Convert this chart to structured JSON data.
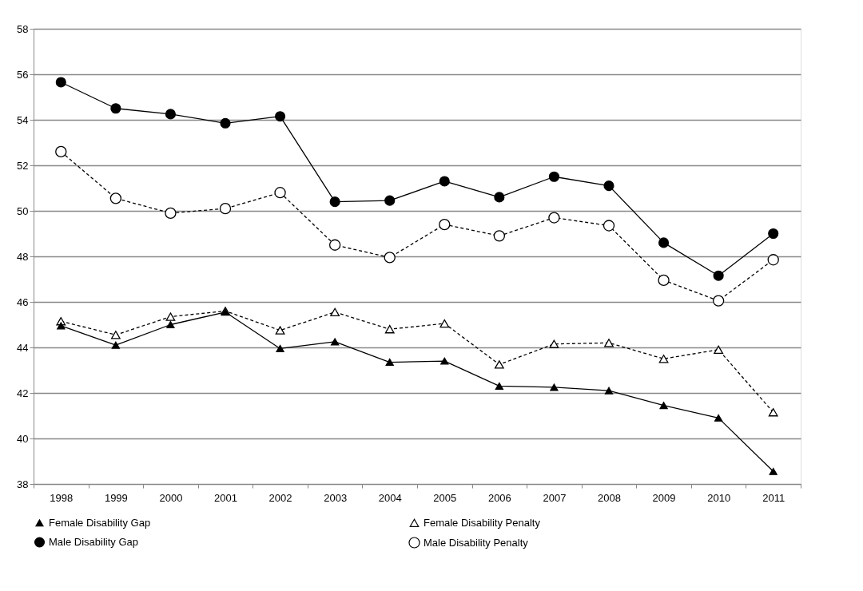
{
  "chart_data": {
    "type": "line",
    "categories": [
      "1998",
      "1999",
      "2000",
      "2001",
      "2002",
      "2003",
      "2004",
      "2005",
      "2006",
      "2007",
      "2008",
      "2009",
      "2010",
      "2011"
    ],
    "series": [
      {
        "name": "Female Disability Gap",
        "color": "#000000",
        "marker": "triangle",
        "line_style": "solid",
        "values": [
          44.95,
          44.1,
          45.0,
          45.55,
          43.95,
          44.25,
          43.35,
          43.4,
          42.3,
          42.25,
          42.1,
          41.45,
          40.9,
          38.55
        ]
      },
      {
        "name": "Female Disability Penalty",
        "color": "#000000",
        "marker": "triangle",
        "line_style": "dashed",
        "values": [
          45.15,
          44.55,
          45.35,
          45.6,
          44.75,
          45.55,
          44.8,
          45.05,
          43.25,
          44.15,
          44.2,
          43.5,
          43.9,
          41.15
        ]
      },
      {
        "name": "Male Disability Gap",
        "color": "#000000",
        "marker": "circle",
        "line_style": "solid",
        "values": [
          55.65,
          54.5,
          54.25,
          53.85,
          54.15,
          50.4,
          50.45,
          51.3,
          50.6,
          51.5,
          51.1,
          48.6,
          47.15,
          49.0
        ]
      },
      {
        "name": "Male Disability Penalty",
        "color": "#000000",
        "marker": "circle",
        "line_style": "dashed",
        "values": [
          52.6,
          50.55,
          49.9,
          50.1,
          50.8,
          48.5,
          47.95,
          49.4,
          48.9,
          49.7,
          49.35,
          46.95,
          46.05,
          47.85
        ]
      }
    ],
    "ylim": [
      38,
      58
    ],
    "yticks": [
      38,
      40,
      42,
      44,
      46,
      48,
      50,
      52,
      54,
      56,
      58
    ],
    "grid": "y",
    "legend": "bottom"
  }
}
